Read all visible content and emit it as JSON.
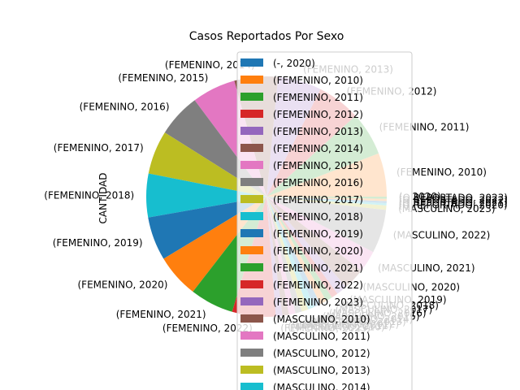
{
  "chart_data": {
    "type": "pie",
    "title": "Casos Reportados Por Sexo",
    "ylabel": "CANTIDAD",
    "legend_position": "right, overlapping the pie",
    "colors": [
      "#1f77b4",
      "#ff7f0e",
      "#2ca02c",
      "#d62728",
      "#9467bd",
      "#8c564b",
      "#e377c2",
      "#7f7f7f",
      "#bcbd22",
      "#17becf"
    ],
    "slices": [
      {
        "label": "(-, 2020)",
        "value": 0
      },
      {
        "label": "(FEMENINO, 2010)",
        "value": 2
      },
      {
        "label": "(FEMENINO, 2011)",
        "value": 2
      },
      {
        "label": "(FEMENINO, 2012)",
        "value": 2
      },
      {
        "label": "(FEMENINO, 2013)",
        "value": 2
      },
      {
        "label": "(FEMENINO, 2014)",
        "value": 2
      },
      {
        "label": "(FEMENINO, 2015)",
        "value": 2
      },
      {
        "label": "(FEMENINO, 2016)",
        "value": 2
      },
      {
        "label": "(FEMENINO, 2017)",
        "value": 2
      },
      {
        "label": "(FEMENINO, 2018)",
        "value": 2
      },
      {
        "label": "(FEMENINO, 2019)",
        "value": 2
      },
      {
        "label": "(FEMENINO, 2020)",
        "value": 2
      },
      {
        "label": "(FEMENINO, 2021)",
        "value": 2
      },
      {
        "label": "(FEMENINO, 2022)",
        "value": 2
      },
      {
        "label": "(FEMENINO, 2023)",
        "value": 0.3
      },
      {
        "label": "(MASCULINO, 2010)",
        "value": 0.3
      },
      {
        "label": "(MASCULINO, 2011)",
        "value": 0.3
      },
      {
        "label": "(MASCULINO, 2012)",
        "value": 0.3
      },
      {
        "label": "(MASCULINO, 2013)",
        "value": 0.3
      },
      {
        "label": "(MASCULINO, 2014)",
        "value": 0.3
      },
      {
        "label": "(MASCULINO, 2015)",
        "value": 0.3
      },
      {
        "label": "(MASCULINO, 2016)",
        "value": 0.3
      },
      {
        "label": "(MASCULINO, 2017)",
        "value": 0.3
      },
      {
        "label": "(MASCULINO, 2018)",
        "value": 0.3
      },
      {
        "label": "(MASCULINO, 2019)",
        "value": 0.5
      },
      {
        "label": "(MASCULINO, 2020)",
        "value": 1
      },
      {
        "label": "(MASCULINO, 2021)",
        "value": 1
      },
      {
        "label": "(MASCULINO, 2022)",
        "value": 2
      },
      {
        "label": "(MASCULINO, 2023)",
        "value": 0.2
      },
      {
        "label": "(Q REPORTADO, 2020)",
        "value": 0.1
      },
      {
        "label": "(Q REPORTADO, 2021)",
        "value": 0.1
      },
      {
        "label": "(Q REPORTADO, 2022)",
        "value": 0.1
      },
      {
        "label": "(Q REPORTADO, 2023)",
        "value": 0.1
      }
    ]
  }
}
